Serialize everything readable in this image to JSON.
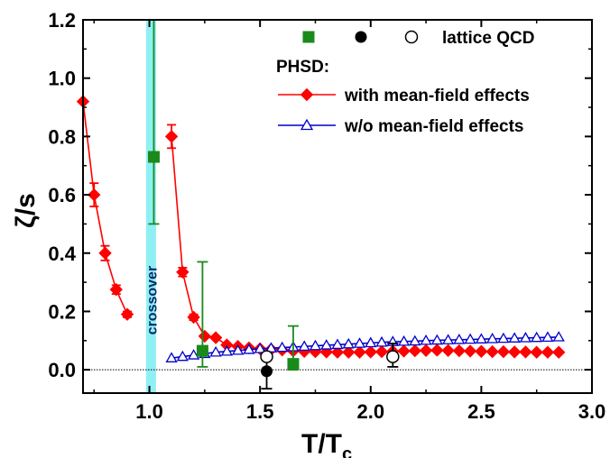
{
  "chart_data": {
    "type": "scatter",
    "xlabel_main": "T/T",
    "xlabel_sub": "c",
    "ylabel": "ζ/s",
    "xlim": [
      0.7,
      3.0
    ],
    "ylim": [
      -0.08,
      1.2
    ],
    "x_ticks": [
      "1.0",
      "1.5",
      "2.0",
      "2.5",
      "3.0"
    ],
    "x_tick_values": [
      1.0,
      1.5,
      2.0,
      2.5,
      3.0
    ],
    "y_ticks": [
      "0.0",
      "0.2",
      "0.4",
      "0.6",
      "0.8",
      "1.0",
      "1.2"
    ],
    "y_tick_values": [
      0.0,
      0.2,
      0.4,
      0.6,
      0.8,
      1.0,
      1.2
    ],
    "zero_line": true,
    "crossover": {
      "x_range": [
        0.985,
        1.03
      ],
      "label": "crossover",
      "color": "#8ff0f4"
    },
    "series": [
      {
        "name": "with mean-field effects",
        "marker": "diamond",
        "color": "#ff0000",
        "segments": [
          [
            {
              "x": 0.7,
              "y": 0.92,
              "err": 0.0
            },
            {
              "x": 0.75,
              "y": 0.6,
              "err": 0.04
            },
            {
              "x": 0.8,
              "y": 0.4,
              "err": 0.025
            },
            {
              "x": 0.85,
              "y": 0.275,
              "err": 0.015
            },
            {
              "x": 0.9,
              "y": 0.19,
              "err": 0.01
            }
          ],
          [
            {
              "x": 1.1,
              "y": 0.8,
              "err": 0.04
            },
            {
              "x": 1.15,
              "y": 0.335,
              "err": 0.015
            },
            {
              "x": 1.2,
              "y": 0.18,
              "err": 0.01
            },
            {
              "x": 1.25,
              "y": 0.115,
              "err": 0.0
            },
            {
              "x": 1.3,
              "y": 0.11,
              "err": 0.0
            },
            {
              "x": 1.35,
              "y": 0.085,
              "err": 0.0
            },
            {
              "x": 1.4,
              "y": 0.08,
              "err": 0.0
            },
            {
              "x": 1.45,
              "y": 0.075,
              "err": 0.0
            },
            {
              "x": 1.5,
              "y": 0.072,
              "err": 0.0
            },
            {
              "x": 1.55,
              "y": 0.07,
              "err": 0.0
            },
            {
              "x": 1.6,
              "y": 0.068,
              "err": 0.0
            },
            {
              "x": 1.65,
              "y": 0.065,
              "err": 0.0
            },
            {
              "x": 1.7,
              "y": 0.063,
              "err": 0.0
            },
            {
              "x": 1.75,
              "y": 0.062,
              "err": 0.0
            },
            {
              "x": 1.8,
              "y": 0.061,
              "err": 0.0
            },
            {
              "x": 1.85,
              "y": 0.06,
              "err": 0.0
            },
            {
              "x": 1.9,
              "y": 0.06,
              "err": 0.0
            },
            {
              "x": 1.95,
              "y": 0.06,
              "err": 0.0
            },
            {
              "x": 2.0,
              "y": 0.061,
              "err": 0.0
            },
            {
              "x": 2.05,
              "y": 0.062,
              "err": 0.0
            },
            {
              "x": 2.1,
              "y": 0.063,
              "err": 0.0
            },
            {
              "x": 2.15,
              "y": 0.064,
              "err": 0.0
            },
            {
              "x": 2.2,
              "y": 0.065,
              "err": 0.0
            },
            {
              "x": 2.25,
              "y": 0.066,
              "err": 0.0
            },
            {
              "x": 2.3,
              "y": 0.067,
              "err": 0.0
            },
            {
              "x": 2.35,
              "y": 0.066,
              "err": 0.0
            },
            {
              "x": 2.4,
              "y": 0.065,
              "err": 0.0
            },
            {
              "x": 2.45,
              "y": 0.064,
              "err": 0.0
            },
            {
              "x": 2.5,
              "y": 0.063,
              "err": 0.0
            },
            {
              "x": 2.55,
              "y": 0.062,
              "err": 0.0
            },
            {
              "x": 2.6,
              "y": 0.062,
              "err": 0.0
            },
            {
              "x": 2.65,
              "y": 0.061,
              "err": 0.0
            },
            {
              "x": 2.7,
              "y": 0.061,
              "err": 0.0
            },
            {
              "x": 2.75,
              "y": 0.06,
              "err": 0.0
            },
            {
              "x": 2.8,
              "y": 0.06,
              "err": 0.0
            },
            {
              "x": 2.85,
              "y": 0.06,
              "err": 0.0
            }
          ]
        ]
      },
      {
        "name": "w/o mean-field effects",
        "marker": "triangle-open",
        "color": "#0000cc",
        "segments": [
          [
            {
              "x": 1.1,
              "y": 0.04
            },
            {
              "x": 1.15,
              "y": 0.045
            },
            {
              "x": 1.2,
              "y": 0.05
            },
            {
              "x": 1.25,
              "y": 0.055
            },
            {
              "x": 1.3,
              "y": 0.06
            },
            {
              "x": 1.35,
              "y": 0.063
            },
            {
              "x": 1.4,
              "y": 0.066
            },
            {
              "x": 1.45,
              "y": 0.069
            },
            {
              "x": 1.5,
              "y": 0.072
            },
            {
              "x": 1.55,
              "y": 0.074
            },
            {
              "x": 1.6,
              "y": 0.076
            },
            {
              "x": 1.65,
              "y": 0.078
            },
            {
              "x": 1.7,
              "y": 0.08
            },
            {
              "x": 1.75,
              "y": 0.082
            },
            {
              "x": 1.8,
              "y": 0.084
            },
            {
              "x": 1.85,
              "y": 0.086
            },
            {
              "x": 1.9,
              "y": 0.088
            },
            {
              "x": 1.95,
              "y": 0.09
            },
            {
              "x": 2.0,
              "y": 0.092
            },
            {
              "x": 2.05,
              "y": 0.094
            },
            {
              "x": 2.1,
              "y": 0.096
            },
            {
              "x": 2.15,
              "y": 0.097
            },
            {
              "x": 2.2,
              "y": 0.098
            },
            {
              "x": 2.25,
              "y": 0.1
            },
            {
              "x": 2.3,
              "y": 0.101
            },
            {
              "x": 2.35,
              "y": 0.102
            },
            {
              "x": 2.4,
              "y": 0.103
            },
            {
              "x": 2.45,
              "y": 0.104
            },
            {
              "x": 2.5,
              "y": 0.105
            },
            {
              "x": 2.55,
              "y": 0.106
            },
            {
              "x": 2.6,
              "y": 0.107
            },
            {
              "x": 2.65,
              "y": 0.108
            },
            {
              "x": 2.7,
              "y": 0.109
            },
            {
              "x": 2.75,
              "y": 0.11
            },
            {
              "x": 2.8,
              "y": 0.111
            },
            {
              "x": 2.85,
              "y": 0.112
            }
          ]
        ]
      }
    ],
    "lattice": [
      {
        "marker": "square",
        "color": "#1a8a1a",
        "points": [
          {
            "x": 1.02,
            "y": 0.73,
            "lo": 0.5,
            "hi": 1.2
          },
          {
            "x": 1.24,
            "y": 0.065,
            "lo": 0.01,
            "hi": 0.37
          },
          {
            "x": 1.65,
            "y": 0.02,
            "lo": 0.0,
            "hi": 0.15
          }
        ]
      },
      {
        "marker": "circle-filled",
        "color": "#000000",
        "points": [
          {
            "x": 1.53,
            "y": -0.005,
            "lo": -0.065,
            "hi": 0.04
          }
        ]
      },
      {
        "marker": "circle-open",
        "color": "#000000",
        "points": [
          {
            "x": 1.53,
            "y": 0.045,
            "lo": 0.045,
            "hi": 0.045
          },
          {
            "x": 2.1,
            "y": 0.045,
            "lo": 0.01,
            "hi": 0.09
          }
        ]
      }
    ],
    "legend": {
      "lattice_label": "lattice QCD",
      "phsd_label": "PHSD:",
      "entries": [
        "with mean-field effects",
        "w/o mean-field effects"
      ]
    }
  }
}
